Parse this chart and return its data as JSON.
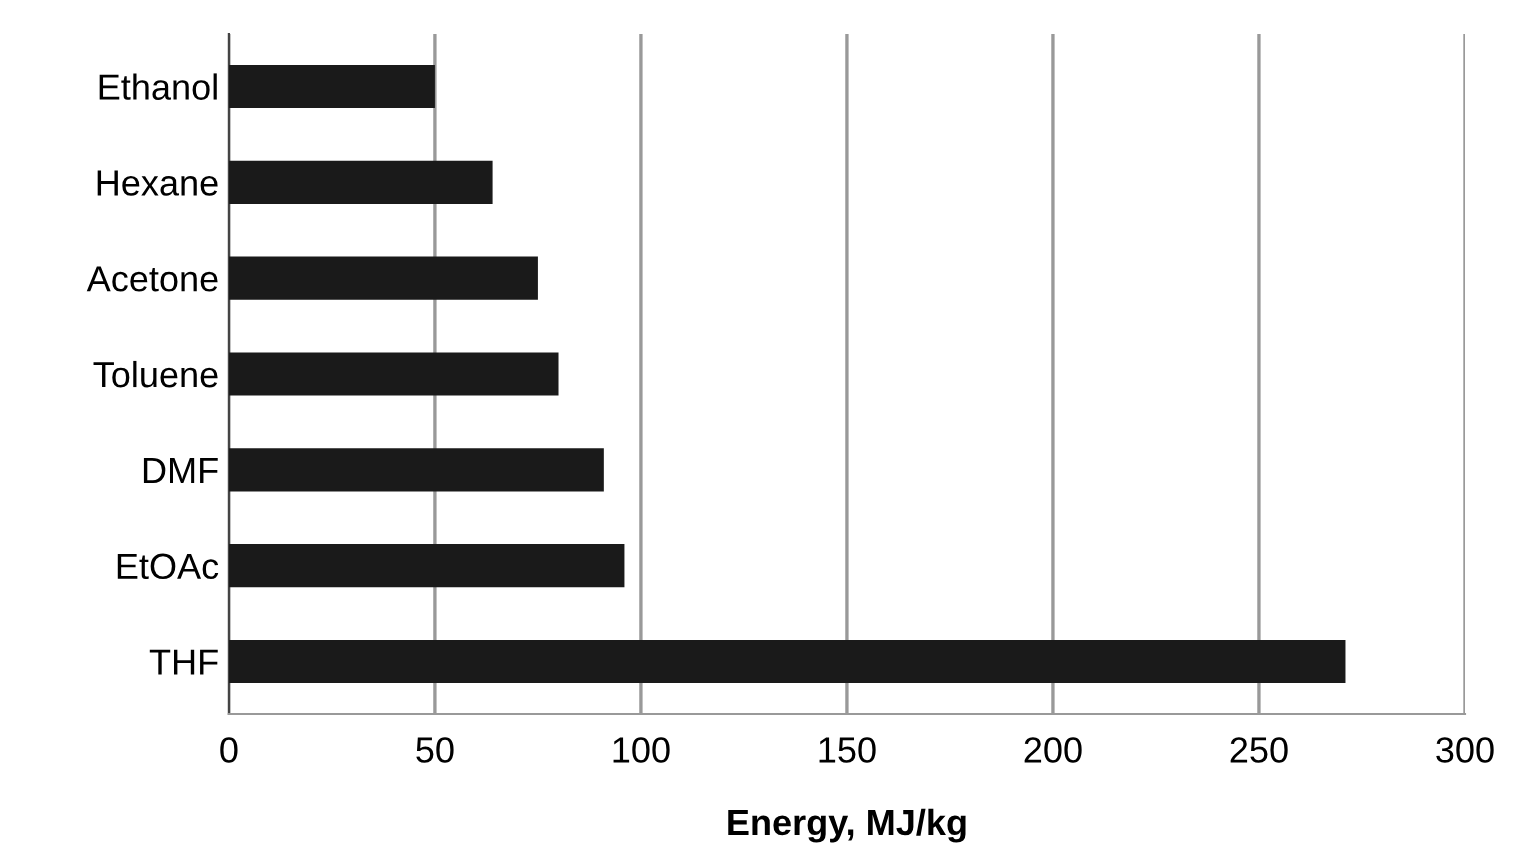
{
  "chart_data": {
    "type": "bar",
    "orientation": "horizontal",
    "categories": [
      "Ethanol",
      "Hexane",
      "Acetone",
      "Toluene",
      "DMF",
      "EtOAc",
      "THF"
    ],
    "values": [
      50,
      64,
      75,
      80,
      91,
      96,
      271
    ],
    "color": "#1a1a1a",
    "xlabel": "Energy, MJ/kg",
    "xlim": [
      0,
      300
    ],
    "xticks": [
      0,
      50,
      100,
      150,
      200,
      250,
      300
    ],
    "grid": "x"
  }
}
